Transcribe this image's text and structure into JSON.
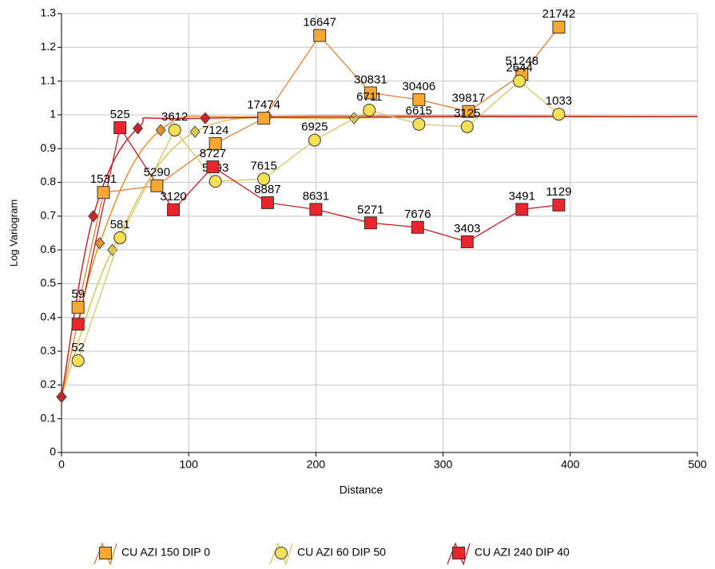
{
  "chart_data": {
    "type": "variogram",
    "xlabel": "Distance",
    "ylabel": "Log Variogram",
    "xlim": [
      0,
      500
    ],
    "ylim": [
      0,
      1.3
    ],
    "xticks": [
      0,
      100,
      200,
      300,
      400,
      500
    ],
    "yticks": [
      0,
      0.1,
      0.2,
      0.3,
      0.4,
      0.5,
      0.6,
      0.7,
      0.8,
      0.9,
      1,
      1.1,
      1.2,
      1.3
    ],
    "grid": true,
    "series": [
      {
        "name": "CU AZI 150 DIP 0",
        "marker": "square",
        "color": "#f7a831",
        "line_color": "#e07f38",
        "x": [
          13,
          33,
          75,
          121,
          159,
          203,
          243,
          281,
          320,
          362,
          391
        ],
        "values": [
          0.43,
          0.77,
          0.79,
          0.915,
          0.99,
          1.235,
          1.065,
          1.045,
          1.01,
          1.12,
          1.26
        ],
        "labels": [
          59,
          1531,
          5290,
          7124,
          17474,
          16647,
          30831,
          30406,
          39817,
          51248,
          21742
        ]
      },
      {
        "name": "CU AZI 60 DIP 50",
        "marker": "circle",
        "color": "#f5df55",
        "line_color": "#d9c667",
        "x": [
          13,
          46,
          89,
          121,
          159,
          199,
          242,
          281,
          319,
          360,
          391
        ],
        "values": [
          0.272,
          0.636,
          0.955,
          0.803,
          0.81,
          0.925,
          1.014,
          0.972,
          0.965,
          1.1,
          1.002
        ],
        "labels": [
          52,
          581,
          3612,
          5593,
          7615,
          6925,
          6711,
          6615,
          3125,
          2644,
          1033
        ]
      },
      {
        "name": "CU AZI 240 DIP 40",
        "marker": "square",
        "color": "#e8262b",
        "line_color": "#c41e22",
        "x": [
          13,
          46,
          88,
          119,
          162,
          200,
          243,
          280,
          319,
          362,
          391
        ],
        "values": [
          0.38,
          0.962,
          0.719,
          0.846,
          0.74,
          0.72,
          0.68,
          0.667,
          0.624,
          0.72,
          0.733
        ],
        "labels": [
          null,
          525,
          3120,
          8727,
          8887,
          8631,
          5271,
          7676,
          3403,
          3491,
          1129
        ]
      }
    ],
    "models": [
      {
        "color": "#e8902e",
        "x": [
          0,
          30,
          78,
          162,
          500
        ],
        "values": [
          0.165,
          0.62,
          0.955,
          0.995,
          0.995
        ]
      },
      {
        "color": "#d8c658",
        "x": [
          0,
          40,
          105,
          230,
          500
        ],
        "values": [
          0.165,
          0.6,
          0.95,
          0.99,
          0.995
        ]
      },
      {
        "color": "#c8282c",
        "x": [
          0,
          25,
          60,
          113,
          500
        ],
        "values": [
          0.165,
          0.7,
          0.96,
          0.99,
          0.995
        ]
      }
    ]
  }
}
